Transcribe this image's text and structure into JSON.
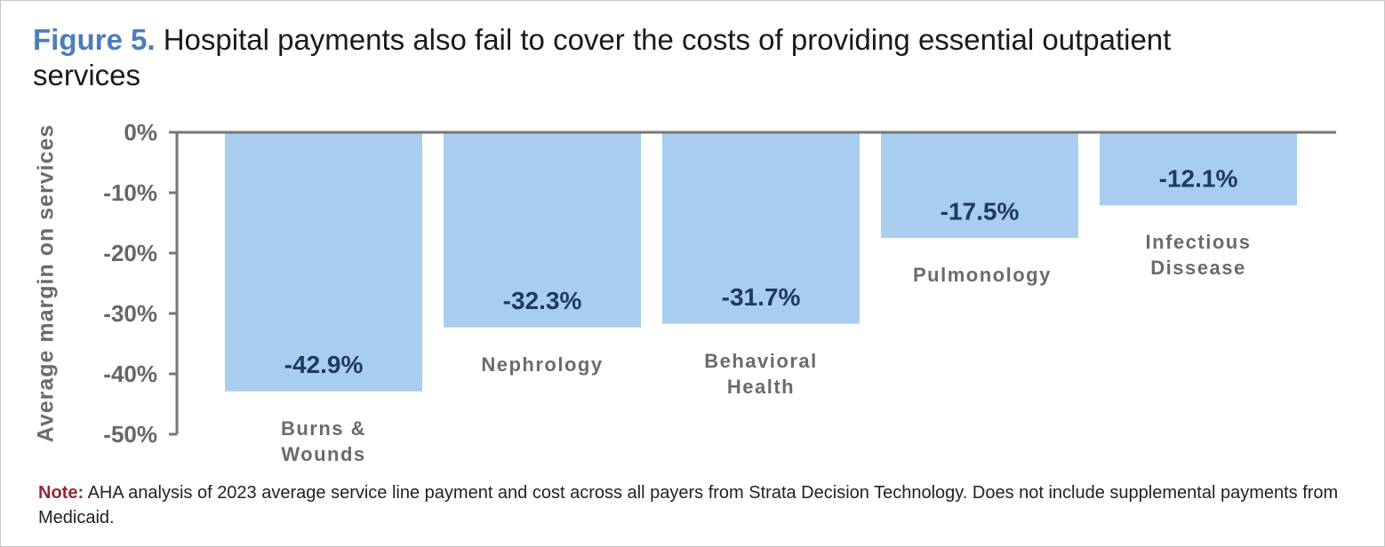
{
  "chart_data": {
    "type": "bar",
    "title_label": "Figure 5.",
    "title": "Hospital payments also fail to cover the costs of providing essential outpatient services",
    "y_label": "Average margin on services",
    "categories": [
      "Burns & Wounds",
      "Nephrology",
      "Behavioral Health",
      "Pulmonology",
      "Infectious Dissease"
    ],
    "values": [
      -42.9,
      -32.3,
      -31.7,
      -17.5,
      -12.1
    ],
    "value_labels": [
      "-42.9%",
      "-32.3%",
      "-31.7%",
      "-17.5%",
      "-12.1%"
    ],
    "color": "#a9cdee",
    "ylim": [
      -50,
      0
    ],
    "yticks": [
      {
        "value": 0,
        "label": "0%"
      },
      {
        "value": -10,
        "label": "-10%"
      },
      {
        "value": -20,
        "label": "-20%"
      },
      {
        "value": -30,
        "label": "-30%"
      },
      {
        "value": -40,
        "label": "-40%"
      },
      {
        "value": -50,
        "label": "-50%"
      }
    ],
    "note_label": "Note:",
    "note": "AHA analysis of 2023 average service line payment and cost across all payers from Strata Decision Technology. Does not include supplemental payments from Medicaid."
  }
}
